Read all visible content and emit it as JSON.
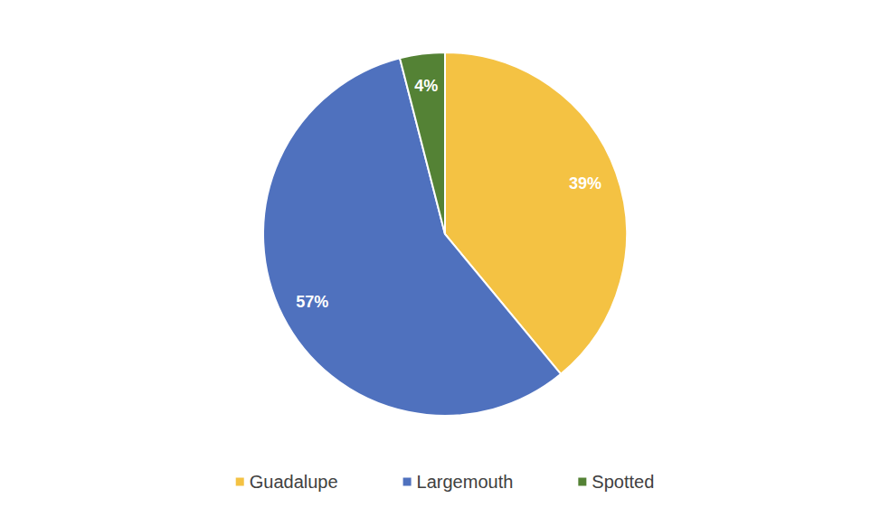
{
  "chart_data": {
    "type": "pie",
    "categories": [
      "Guadalupe",
      "Largemouth",
      "Spotted"
    ],
    "values": [
      39,
      57,
      4
    ],
    "value_labels": [
      "39%",
      "57%",
      "4%"
    ],
    "colors": [
      "#f4c243",
      "#4f71be",
      "#548235"
    ],
    "data_labels": true,
    "legend": "bottom"
  }
}
